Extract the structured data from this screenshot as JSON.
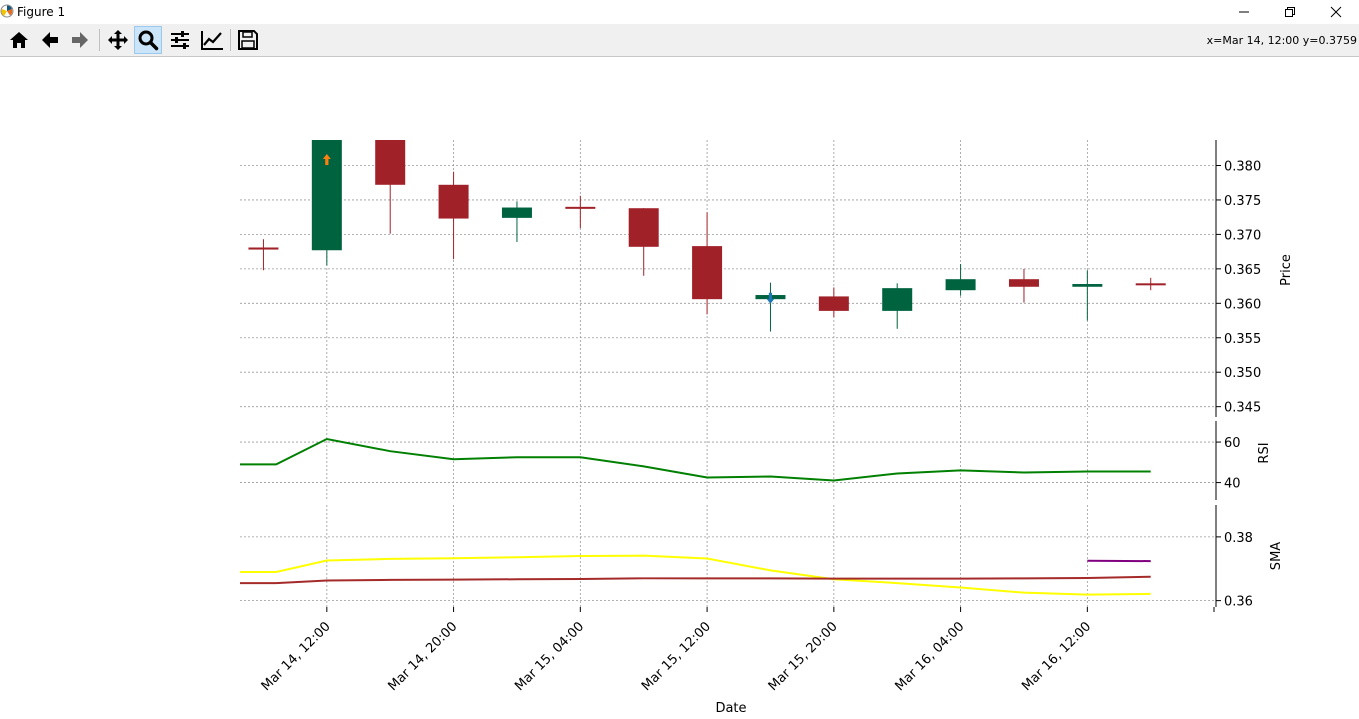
{
  "window": {
    "title": "Figure 1",
    "app_icon": "matplotlib-icon",
    "buttons": [
      "minimize-icon",
      "maximize-icon",
      "close-icon"
    ]
  },
  "toolbar": {
    "tools": [
      {
        "name": "home-button",
        "icon": "home-icon"
      },
      {
        "name": "back-button",
        "icon": "arrow-left-icon"
      },
      {
        "name": "forward-button",
        "icon": "arrow-right-icon"
      },
      {
        "name": "pan-button",
        "icon": "move-icon"
      },
      {
        "name": "zoom-button",
        "icon": "magnifier-icon",
        "active": true
      },
      {
        "name": "configure-subplots-button",
        "icon": "sliders-icon"
      },
      {
        "name": "edit-axis-button",
        "icon": "chart-line-icon"
      },
      {
        "name": "save-button",
        "icon": "floppy-icon"
      }
    ],
    "coords": "x=Mar 14, 12:00 y=0.3759"
  },
  "chart_data": {
    "type": "candlestick",
    "xlabel": "Date",
    "x_ticks": [
      "Mar 14, 12:00",
      "Mar 14, 20:00",
      "Mar 15, 04:00",
      "Mar 15, 12:00",
      "Mar 15, 20:00",
      "Mar 16, 04:00",
      "Mar 16, 12:00"
    ],
    "x_tick_index": [
      1,
      3,
      5,
      7,
      9,
      11,
      13
    ],
    "x_range": [
      -0.37,
      15.03
    ],
    "grid": true,
    "colors": {
      "up": "#006340",
      "down": "#a02128",
      "grid": "#999999"
    },
    "price": {
      "ylabel": "Price",
      "ylim": [
        0.3435,
        0.3837
      ],
      "yticks": [
        0.345,
        0.35,
        0.355,
        0.36,
        0.365,
        0.37,
        0.375,
        0.38
      ],
      "ytick_labels": [
        "0.345",
        "0.350",
        "0.355",
        "0.360",
        "0.365",
        "0.370",
        "0.375",
        "0.380"
      ],
      "candles": [
        {
          "o": 0.3681,
          "h": 0.3693,
          "l": 0.3648,
          "c": 0.3678
        },
        {
          "o": 0.3677,
          "h": 0.3837,
          "l": 0.3655,
          "c": 0.3837
        },
        {
          "o": 0.3837,
          "h": 0.3837,
          "l": 0.3701,
          "c": 0.3772
        },
        {
          "o": 0.3772,
          "h": 0.3791,
          "l": 0.3664,
          "c": 0.3723
        },
        {
          "o": 0.3724,
          "h": 0.3748,
          "l": 0.3689,
          "c": 0.3739
        },
        {
          "o": 0.374,
          "h": 0.3756,
          "l": 0.3709,
          "c": 0.3739
        },
        {
          "o": 0.3738,
          "h": 0.3738,
          "l": 0.364,
          "c": 0.3682
        },
        {
          "o": 0.3683,
          "h": 0.3732,
          "l": 0.3584,
          "c": 0.3606
        },
        {
          "o": 0.3606,
          "h": 0.363,
          "l": 0.3559,
          "c": 0.3612
        },
        {
          "o": 0.361,
          "h": 0.3623,
          "l": 0.358,
          "c": 0.3589
        },
        {
          "o": 0.3589,
          "h": 0.3629,
          "l": 0.3563,
          "c": 0.3622
        },
        {
          "o": 0.3619,
          "h": 0.3657,
          "l": 0.3611,
          "c": 0.3635
        },
        {
          "o": 0.3635,
          "h": 0.365,
          "l": 0.3601,
          "c": 0.3624
        },
        {
          "o": 0.3624,
          "h": 0.3648,
          "l": 0.3575,
          "c": 0.3628
        },
        {
          "o": 0.3629,
          "h": 0.3637,
          "l": 0.3619,
          "c": 0.3627
        }
      ],
      "markers": [
        {
          "x": 1,
          "y": 0.3808,
          "color": "#ff7f0e",
          "shape": "up-arrow"
        },
        {
          "x": 8,
          "y": 0.3608,
          "color": "#1f77b4",
          "shape": "down-arrow"
        }
      ]
    },
    "rsi": {
      "ylabel": "RSI",
      "ylim": [
        31.4,
        70.4
      ],
      "yticks": [
        40,
        60
      ],
      "color": "#008000",
      "x": [
        -0.37,
        0.2,
        1,
        2,
        3,
        4,
        5,
        6,
        7,
        8,
        9,
        10,
        11,
        12,
        13,
        14
      ],
      "values": [
        49.0,
        49.0,
        61.5,
        55.5,
        51.5,
        52.5,
        52.5,
        48.0,
        42.5,
        43.0,
        41.0,
        44.5,
        46.0,
        45.0,
        45.5,
        45.5
      ]
    },
    "sma": {
      "ylabel": "SMA",
      "ylim": [
        0.358,
        0.39
      ],
      "yticks": [
        0.36,
        0.38
      ],
      "ytick_labels": [
        "0.36",
        "0.38"
      ],
      "series": [
        {
          "color": "#ffff00",
          "x": [
            -0.37,
            0.2,
            1,
            2,
            3,
            4,
            5,
            6,
            7,
            8,
            9,
            10,
            11,
            12,
            13,
            14
          ],
          "values": [
            0.369,
            0.369,
            0.3726,
            0.3731,
            0.3733,
            0.3736,
            0.374,
            0.3741,
            0.3732,
            0.3695,
            0.3667,
            0.3655,
            0.3641,
            0.3625,
            0.3619,
            0.3621
          ]
        },
        {
          "color": "#a52a2a",
          "x": [
            -0.37,
            0.2,
            1,
            2,
            3,
            4,
            5,
            6,
            7,
            8,
            9,
            10,
            11,
            12,
            13,
            14
          ],
          "values": [
            0.3655,
            0.3655,
            0.3663,
            0.3665,
            0.3666,
            0.3667,
            0.3668,
            0.367,
            0.367,
            0.367,
            0.3669,
            0.3669,
            0.3669,
            0.367,
            0.3671,
            0.3675
          ]
        },
        {
          "color": "#800080",
          "x": [
            13,
            14
          ],
          "values": [
            0.3725,
            0.3724
          ]
        }
      ]
    }
  }
}
